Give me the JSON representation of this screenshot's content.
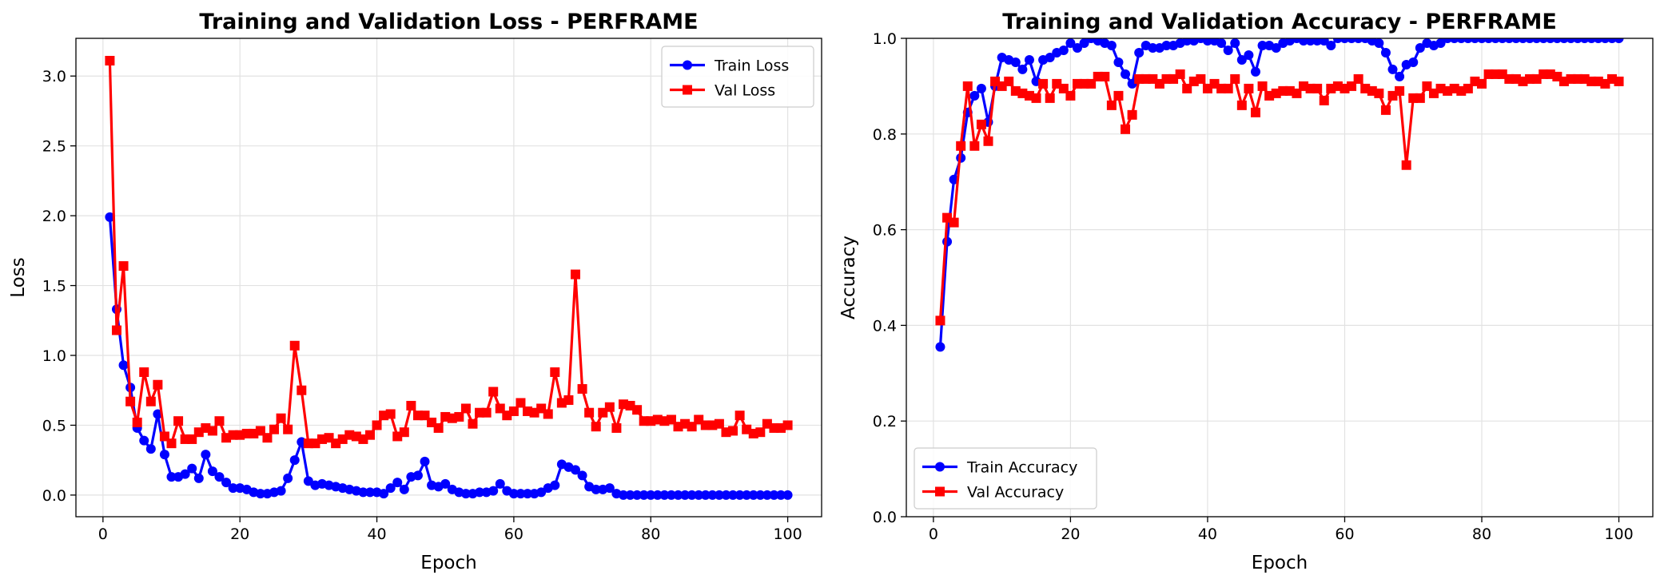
{
  "chart_data": [
    {
      "type": "line",
      "title": "Training and Validation Loss - PERFRAME",
      "xlabel": "Epoch",
      "ylabel": "Loss",
      "xlim": [
        -3.95,
        104.95
      ],
      "ylim": [
        -0.155,
        3.27
      ],
      "xticks": [
        0,
        20,
        40,
        60,
        80,
        100
      ],
      "yticks": [
        0.0,
        0.5,
        1.0,
        1.5,
        2.0,
        2.5,
        3.0
      ],
      "xtick_labels": [
        "0",
        "20",
        "40",
        "60",
        "80",
        "100"
      ],
      "ytick_labels": [
        "0.0",
        "0.5",
        "1.0",
        "1.5",
        "2.0",
        "2.5",
        "3.0"
      ],
      "grid": true,
      "legend_position": "upper right",
      "series": [
        {
          "name": "Train Loss",
          "color": "#0000ff",
          "marker": "circle",
          "values": [
            1.99,
            1.33,
            0.93,
            0.77,
            0.48,
            0.39,
            0.33,
            0.58,
            0.29,
            0.13,
            0.13,
            0.15,
            0.19,
            0.12,
            0.29,
            0.17,
            0.13,
            0.09,
            0.05,
            0.05,
            0.04,
            0.02,
            0.01,
            0.01,
            0.02,
            0.03,
            0.12,
            0.25,
            0.38,
            0.1,
            0.07,
            0.08,
            0.07,
            0.06,
            0.05,
            0.04,
            0.03,
            0.02,
            0.02,
            0.02,
            0.01,
            0.05,
            0.09,
            0.04,
            0.13,
            0.14,
            0.24,
            0.07,
            0.06,
            0.08,
            0.04,
            0.02,
            0.01,
            0.01,
            0.02,
            0.02,
            0.03,
            0.08,
            0.03,
            0.01,
            0.01,
            0.01,
            0.01,
            0.02,
            0.05,
            0.07,
            0.22,
            0.2,
            0.18,
            0.14,
            0.06,
            0.04,
            0.04,
            0.05,
            0.01,
            0.0,
            0.0,
            0.0,
            0.0,
            0.0,
            0.0,
            0.0,
            0.0,
            0.0,
            0.0,
            0.0,
            0.0,
            0.0,
            0.0,
            0.0,
            0.0,
            0.0,
            0.0,
            0.0,
            0.0,
            0.0,
            0.0,
            0.0,
            0.0,
            0.0
          ]
        },
        {
          "name": "Val Loss",
          "color": "#ff0000",
          "marker": "square",
          "values": [
            3.11,
            1.18,
            1.64,
            0.67,
            0.52,
            0.88,
            0.67,
            0.79,
            0.42,
            0.37,
            0.53,
            0.4,
            0.4,
            0.45,
            0.48,
            0.46,
            0.53,
            0.41,
            0.43,
            0.43,
            0.44,
            0.44,
            0.46,
            0.41,
            0.47,
            0.55,
            0.47,
            1.07,
            0.75,
            0.37,
            0.37,
            0.4,
            0.41,
            0.37,
            0.4,
            0.43,
            0.42,
            0.4,
            0.43,
            0.5,
            0.57,
            0.58,
            0.42,
            0.45,
            0.64,
            0.57,
            0.57,
            0.52,
            0.48,
            0.56,
            0.55,
            0.56,
            0.62,
            0.51,
            0.59,
            0.59,
            0.74,
            0.62,
            0.57,
            0.6,
            0.66,
            0.6,
            0.59,
            0.62,
            0.58,
            0.88,
            0.66,
            0.68,
            1.58,
            0.76,
            0.59,
            0.49,
            0.59,
            0.63,
            0.48,
            0.65,
            0.64,
            0.61,
            0.53,
            0.53,
            0.54,
            0.53,
            0.54,
            0.49,
            0.51,
            0.49,
            0.54,
            0.5,
            0.5,
            0.51,
            0.45,
            0.46,
            0.57,
            0.47,
            0.44,
            0.45,
            0.51,
            0.48,
            0.48,
            0.5
          ]
        }
      ]
    },
    {
      "type": "line",
      "title": "Training and Validation Accuracy - PERFRAME",
      "xlabel": "Epoch",
      "ylabel": "Accuracy",
      "xlim": [
        -3.95,
        104.95
      ],
      "ylim": [
        0.0,
        1.0
      ],
      "xticks": [
        0,
        20,
        40,
        60,
        80,
        100
      ],
      "yticks": [
        0.0,
        0.2,
        0.4,
        0.6,
        0.8,
        1.0
      ],
      "xtick_labels": [
        "0",
        "20",
        "40",
        "60",
        "80",
        "100"
      ],
      "ytick_labels": [
        "0.0",
        "0.2",
        "0.4",
        "0.6",
        "0.8",
        "1.0"
      ],
      "grid": true,
      "legend_position": "lower left",
      "series": [
        {
          "name": "Train Accuracy",
          "color": "#0000ff",
          "marker": "circle",
          "values": [
            0.355,
            0.575,
            0.705,
            0.75,
            0.845,
            0.88,
            0.895,
            0.825,
            0.9,
            0.96,
            0.955,
            0.95,
            0.935,
            0.955,
            0.91,
            0.955,
            0.96,
            0.97,
            0.975,
            0.99,
            0.98,
            0.99,
            1.0,
            0.995,
            0.99,
            0.985,
            0.95,
            0.925,
            0.905,
            0.97,
            0.985,
            0.98,
            0.98,
            0.985,
            0.985,
            0.99,
            0.995,
            0.995,
            1.0,
            0.995,
            0.995,
            0.99,
            0.975,
            0.99,
            0.955,
            0.965,
            0.93,
            0.985,
            0.985,
            0.98,
            0.99,
            0.995,
            1.0,
            0.995,
            0.995,
            0.995,
            0.995,
            0.985,
            1.0,
            1.0,
            1.0,
            1.0,
            1.0,
            0.995,
            0.99,
            0.97,
            0.935,
            0.92,
            0.945,
            0.95,
            0.98,
            0.99,
            0.985,
            0.99,
            1.0,
            1.0,
            1.0,
            1.0,
            1.0,
            1.0,
            1.0,
            1.0,
            1.0,
            1.0,
            1.0,
            1.0,
            1.0,
            1.0,
            1.0,
            1.0,
            1.0,
            1.0,
            1.0,
            1.0,
            1.0,
            1.0,
            1.0,
            1.0,
            1.0,
            1.0
          ]
        },
        {
          "name": "Val Accuracy",
          "color": "#ff0000",
          "marker": "square",
          "values": [
            0.41,
            0.625,
            0.615,
            0.775,
            0.9,
            0.775,
            0.82,
            0.785,
            0.91,
            0.9,
            0.91,
            0.89,
            0.885,
            0.88,
            0.875,
            0.905,
            0.875,
            0.905,
            0.895,
            0.88,
            0.905,
            0.905,
            0.905,
            0.92,
            0.92,
            0.86,
            0.88,
            0.81,
            0.84,
            0.915,
            0.915,
            0.915,
            0.905,
            0.915,
            0.915,
            0.925,
            0.895,
            0.91,
            0.915,
            0.895,
            0.905,
            0.895,
            0.895,
            0.915,
            0.86,
            0.895,
            0.845,
            0.9,
            0.88,
            0.885,
            0.89,
            0.89,
            0.885,
            0.9,
            0.895,
            0.895,
            0.87,
            0.895,
            0.9,
            0.895,
            0.9,
            0.915,
            0.895,
            0.89,
            0.885,
            0.85,
            0.88,
            0.89,
            0.735,
            0.875,
            0.875,
            0.9,
            0.885,
            0.895,
            0.89,
            0.895,
            0.89,
            0.895,
            0.91,
            0.905,
            0.925,
            0.925,
            0.925,
            0.915,
            0.915,
            0.91,
            0.915,
            0.915,
            0.925,
            0.925,
            0.92,
            0.91,
            0.915,
            0.915,
            0.915,
            0.91,
            0.91,
            0.905,
            0.915,
            0.91
          ]
        }
      ]
    }
  ]
}
